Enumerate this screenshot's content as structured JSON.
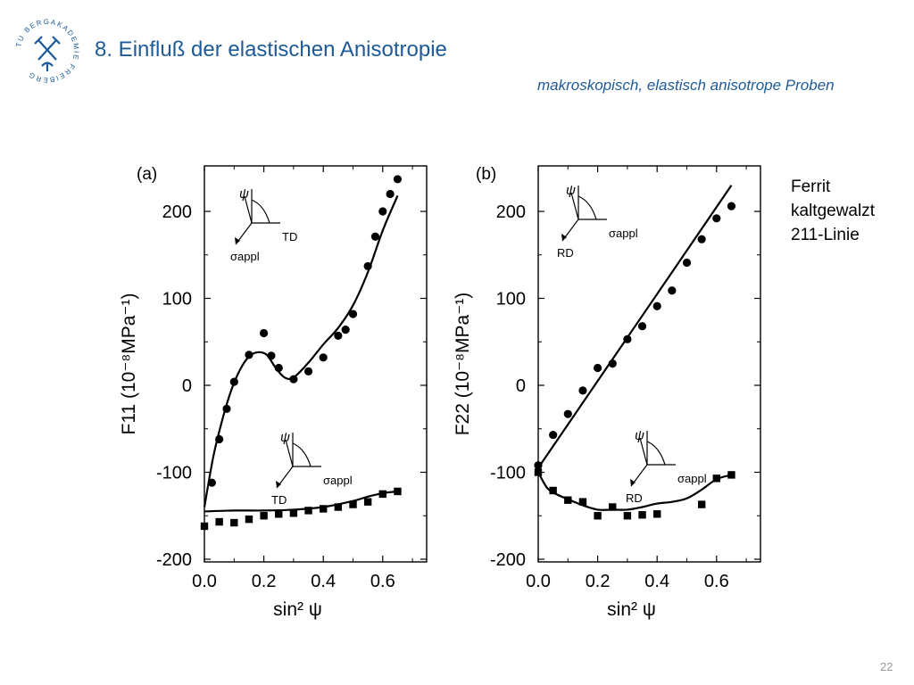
{
  "slide": {
    "title": "8. Einfluß der elastischen Anisotropie",
    "subtitle": "makroskopisch, elastisch anisotrope Proben",
    "side_note": [
      "Ferrit",
      "kaltgewalzt",
      "211-Linie"
    ],
    "page_number": "22",
    "logo_text": "TU BERGAKADEMIE FREIBERG",
    "colors": {
      "title": "#1d5a97",
      "page_number": "#999999",
      "ink": "#000000"
    }
  },
  "chart_data": [
    {
      "type": "scatter",
      "panel_label": "(a)",
      "xlabel": "sin² ψ",
      "ylabel": "F11 (10⁻⁸MPa⁻¹)",
      "xlim": [
        0.0,
        0.75
      ],
      "ylim": [
        -200,
        250
      ],
      "xticks": [
        "0.0",
        "0.2",
        "0.4",
        "0.6"
      ],
      "yticks": [
        "-200",
        "-100",
        "0",
        "100",
        "200"
      ],
      "grid": false,
      "series": [
        {
          "marker": "circle",
          "x": [
            0.025,
            0.05,
            0.075,
            0.1,
            0.15,
            0.2,
            0.225,
            0.25,
            0.3,
            0.35,
            0.4,
            0.45,
            0.475,
            0.5,
            0.55,
            0.575,
            0.6,
            0.625,
            0.65
          ],
          "y": [
            -112,
            -62,
            -27,
            4,
            35,
            60,
            34,
            20,
            7,
            16,
            32,
            57,
            64,
            82,
            137,
            171,
            200,
            220,
            237
          ]
        },
        {
          "marker": "square",
          "x": [
            0.0,
            0.05,
            0.1,
            0.15,
            0.2,
            0.25,
            0.3,
            0.35,
            0.4,
            0.45,
            0.5,
            0.55,
            0.6,
            0.65
          ],
          "y": [
            -162,
            -157,
            -158,
            -154,
            -150,
            -148,
            -147,
            -144,
            -142,
            -140,
            -137,
            -134,
            -125,
            -122
          ]
        },
        {
          "style": "line",
          "x": [
            0.0,
            0.03,
            0.06,
            0.09,
            0.12,
            0.15,
            0.18,
            0.21,
            0.24,
            0.27,
            0.3,
            0.35,
            0.4,
            0.45,
            0.5,
            0.55,
            0.6,
            0.65
          ],
          "y": [
            -140,
            -82,
            -40,
            -6,
            18,
            33,
            38,
            35,
            20,
            9,
            9,
            26,
            47,
            66,
            92,
            130,
            178,
            218
          ]
        },
        {
          "style": "line",
          "x": [
            0.0,
            0.1,
            0.2,
            0.3,
            0.4,
            0.5,
            0.55,
            0.6,
            0.65
          ],
          "y": [
            -145,
            -144,
            -144,
            -143,
            -140,
            -133,
            -128,
            -124,
            -122
          ]
        }
      ],
      "insets": [
        {
          "labels": [
            "ψ",
            "TD",
            "σappl"
          ]
        },
        {
          "labels": [
            "ψ",
            "σappl",
            "TD"
          ]
        }
      ]
    },
    {
      "type": "scatter",
      "panel_label": "(b)",
      "xlabel": "sin² ψ",
      "ylabel": "F22 (10⁻⁸MPa⁻¹)",
      "xlim": [
        0.0,
        0.75
      ],
      "ylim": [
        -200,
        250
      ],
      "xticks": [
        "0.0",
        "0.2",
        "0.4",
        "0.6"
      ],
      "yticks": [
        "-200",
        "-100",
        "0",
        "100",
        "200"
      ],
      "grid": false,
      "series": [
        {
          "marker": "circle",
          "x": [
            0.0,
            0.05,
            0.1,
            0.15,
            0.2,
            0.25,
            0.3,
            0.35,
            0.4,
            0.45,
            0.5,
            0.55,
            0.6,
            0.65
          ],
          "y": [
            -92,
            -57,
            -33,
            -6,
            20,
            25,
            53,
            68,
            91,
            109,
            141,
            168,
            192,
            206
          ]
        },
        {
          "marker": "square",
          "x": [
            0.0,
            0.05,
            0.1,
            0.15,
            0.2,
            0.25,
            0.3,
            0.35,
            0.4,
            0.55,
            0.6,
            0.65
          ],
          "y": [
            -100,
            -121,
            -132,
            -134,
            -150,
            -140,
            -150,
            -149,
            -148,
            -137,
            -107,
            -103
          ]
        },
        {
          "style": "line",
          "x": [
            0.0,
            0.65
          ],
          "y": [
            -95,
            230
          ]
        },
        {
          "style": "line",
          "x": [
            0.0,
            0.03,
            0.06,
            0.1,
            0.15,
            0.2,
            0.25,
            0.3,
            0.35,
            0.4,
            0.45,
            0.5,
            0.55,
            0.6,
            0.65
          ],
          "y": [
            -100,
            -118,
            -125,
            -131,
            -138,
            -143,
            -143,
            -143,
            -140,
            -136,
            -134,
            -130,
            -120,
            -108,
            -103
          ]
        }
      ],
      "insets": [
        {
          "labels": [
            "ψ",
            "σappl",
            "RD"
          ]
        },
        {
          "labels": [
            "ψ",
            "σappl",
            "RD"
          ]
        }
      ]
    }
  ]
}
